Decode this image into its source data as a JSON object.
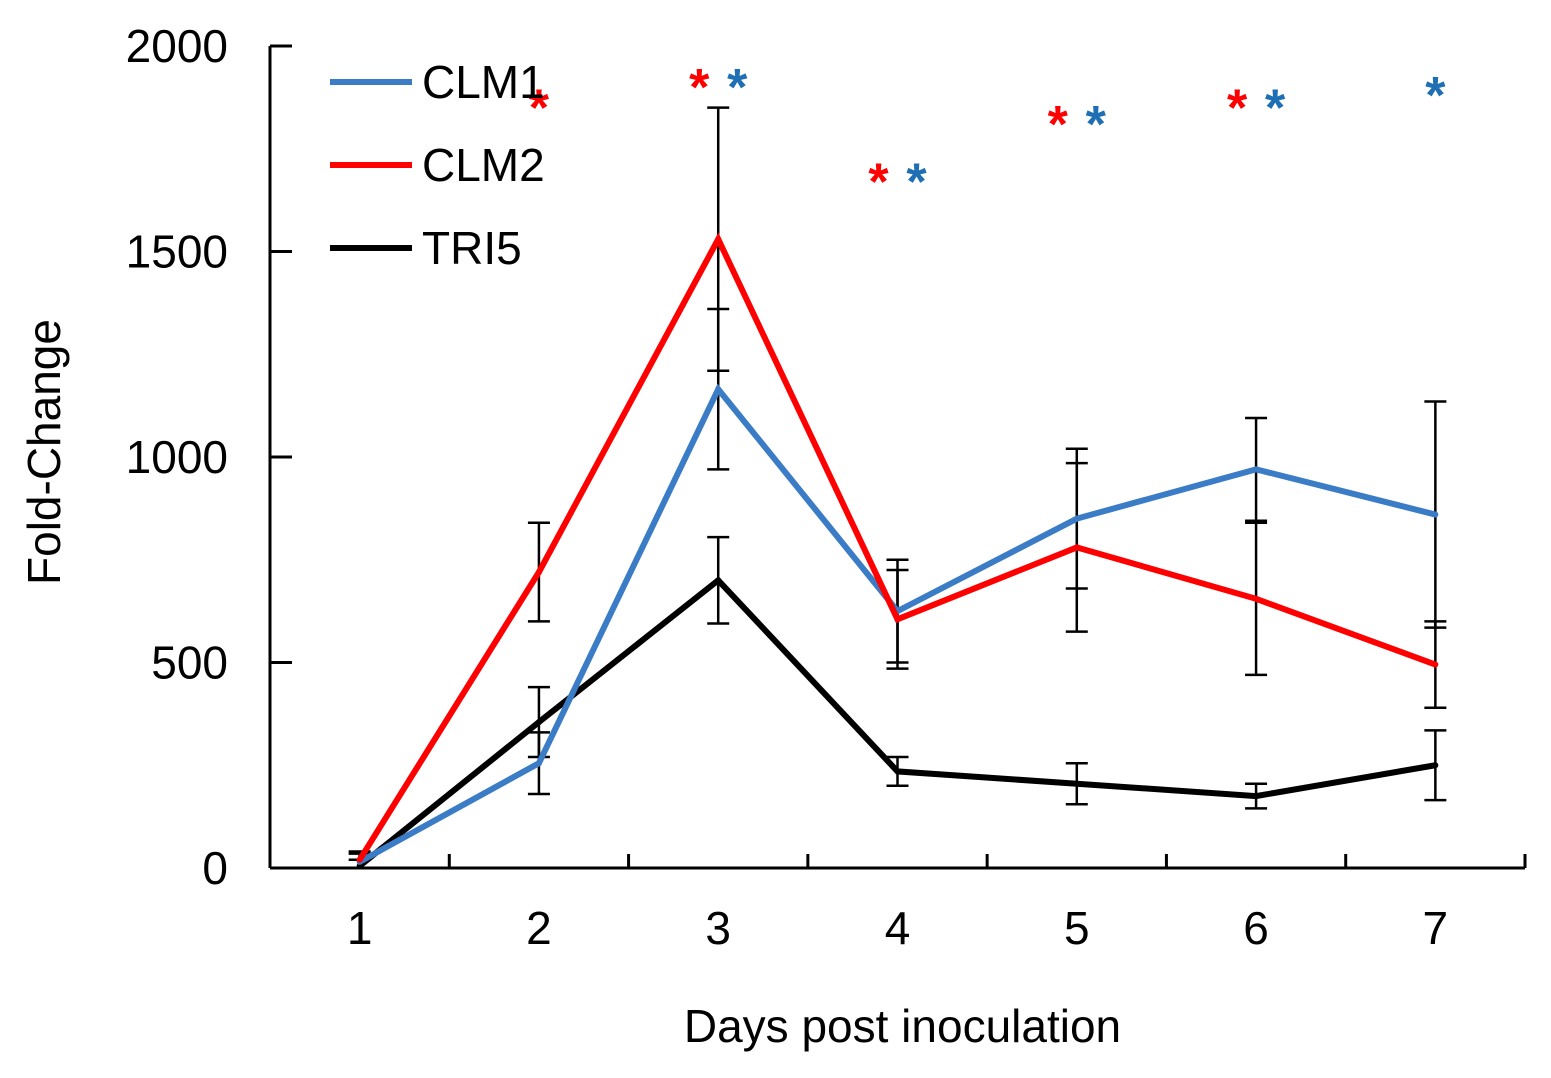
{
  "chart_data": {
    "type": "line",
    "title": "",
    "xlabel": "Days post inoculation",
    "ylabel": "Fold-Change",
    "x": [
      1,
      2,
      3,
      4,
      5,
      6,
      7
    ],
    "x_tick_labels": [
      "1",
      "2",
      "3",
      "4",
      "5",
      "6",
      "7"
    ],
    "xlim": [
      0.5,
      7.5
    ],
    "ylim": [
      0,
      2000
    ],
    "y_ticks": [
      0,
      500,
      1000,
      1500,
      2000
    ],
    "y_tick_labels": [
      "0",
      "500",
      "1000",
      "1500",
      "2000"
    ],
    "grid": false,
    "legend_position": "top-left",
    "series": [
      {
        "name": "CLM1",
        "color": "#3a7cc5",
        "values": [
          15,
          255,
          1165,
          625,
          850,
          970,
          860
        ],
        "error": [
          20,
          75,
          195,
          125,
          170,
          125,
          275
        ]
      },
      {
        "name": "CLM2",
        "color": "#ff0000",
        "values": [
          20,
          720,
          1530,
          605,
          780,
          655,
          495
        ],
        "error": [
          20,
          120,
          320,
          120,
          205,
          185,
          105
        ]
      },
      {
        "name": "TRI5",
        "color": "#000000",
        "values": [
          5,
          355,
          700,
          235,
          205,
          175,
          250
        ],
        "error": [
          15,
          85,
          105,
          35,
          50,
          30,
          85
        ]
      }
    ],
    "annotations": [
      {
        "x": 2,
        "y": 1860,
        "text": "*",
        "marks": [
          {
            "text": "*",
            "color": "#ff0000"
          }
        ]
      },
      {
        "x": 3,
        "y": 1910,
        "text": "**",
        "marks": [
          {
            "text": "*",
            "color": "#ff0000"
          },
          {
            "text": "*",
            "color": "#1f6fb5"
          }
        ]
      },
      {
        "x": 4,
        "y": 1680,
        "text": "**",
        "marks": [
          {
            "text": "*",
            "color": "#ff0000"
          },
          {
            "text": "*",
            "color": "#1f6fb5"
          }
        ]
      },
      {
        "x": 5,
        "y": 1820,
        "text": "**",
        "marks": [
          {
            "text": "*",
            "color": "#ff0000"
          },
          {
            "text": "*",
            "color": "#1f6fb5"
          }
        ]
      },
      {
        "x": 6,
        "y": 1860,
        "text": "**",
        "marks": [
          {
            "text": "*",
            "color": "#ff0000"
          },
          {
            "text": "*",
            "color": "#1f6fb5"
          }
        ]
      },
      {
        "x": 7,
        "y": 1890,
        "text": "*",
        "marks": [
          {
            "text": "*",
            "color": "#1f6fb5"
          }
        ]
      }
    ]
  }
}
